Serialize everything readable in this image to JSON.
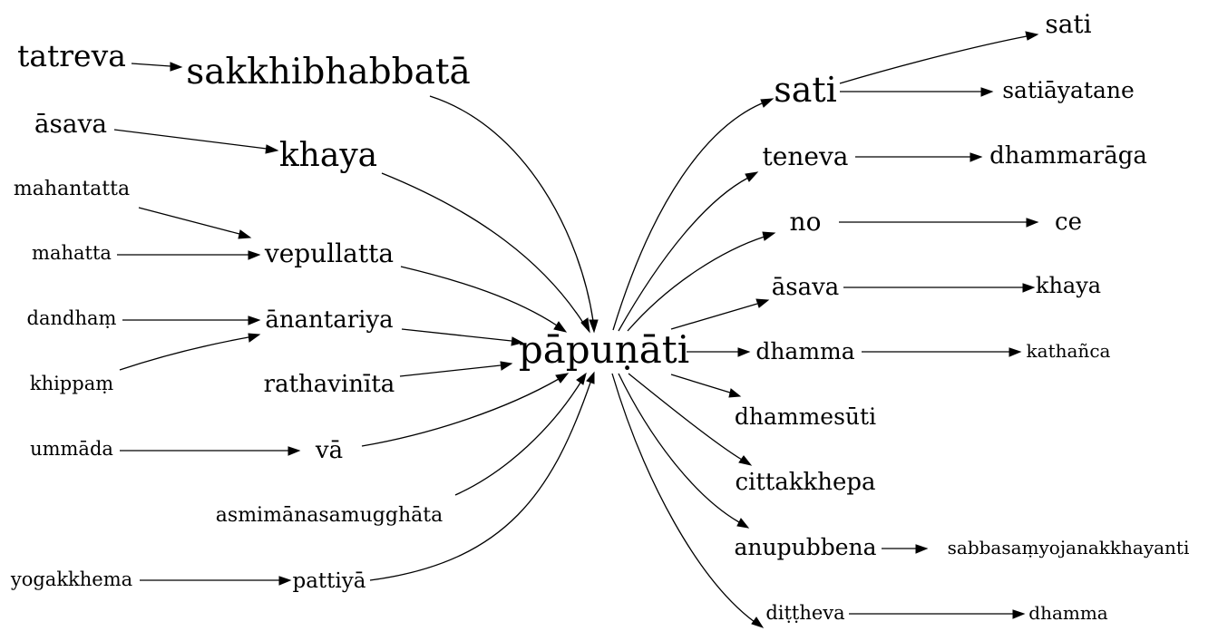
{
  "nodes": {
    "tatreva": "tatreva",
    "sakkhibhabbata": "sakkhibhabbatā",
    "asava_left": "āsava",
    "khaya_left": "khaya",
    "mahantatta": "mahantatta",
    "mahatta": "mahatta",
    "vepullatta": "vepullatta",
    "dandham": "dandhaṃ",
    "khippam": "khippaṃ",
    "anantariya": "ānantariya",
    "rathavinita": "rathavinīta",
    "ummada": "ummāda",
    "va": "vā",
    "asmimana": "asmimānasamugghāta",
    "yogakkhema": "yogakkhema",
    "pattiya": "pattiyā",
    "center": "pāpuṇāti",
    "sati_mid": "sati",
    "sati_top": "sati",
    "satiayatane": "satiāyatane",
    "teneva": "teneva",
    "dhammaraga": "dhammarāga",
    "no": "no",
    "ce": "ce",
    "asava_right": "āsava",
    "khaya_right": "khaya",
    "dhamma_mid": "dhamma",
    "kathanca": "kathañca",
    "dhammesuti": "dhammesūti",
    "cittakkhepa": "cittakkhepa",
    "anupubbena": "anupubbena",
    "sabbasamyojana": "sabbasaṃyojanakkhayanti",
    "dittheva": "diṭṭheva",
    "dhamma_right": "dhamma"
  }
}
